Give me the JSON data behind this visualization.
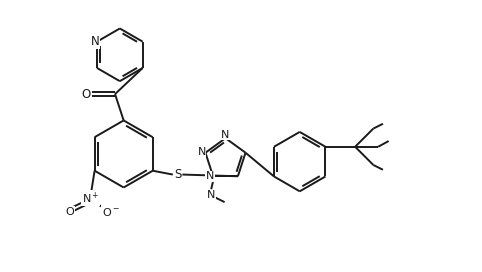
{
  "bg_color": "#ffffff",
  "line_color": "#1a1a1a",
  "line_width": 1.4,
  "font_size": 8.5,
  "fig_width": 4.82,
  "fig_height": 2.72,
  "dpi": 100,
  "xlim": [
    0,
    10
  ],
  "ylim": [
    0,
    5.65
  ]
}
